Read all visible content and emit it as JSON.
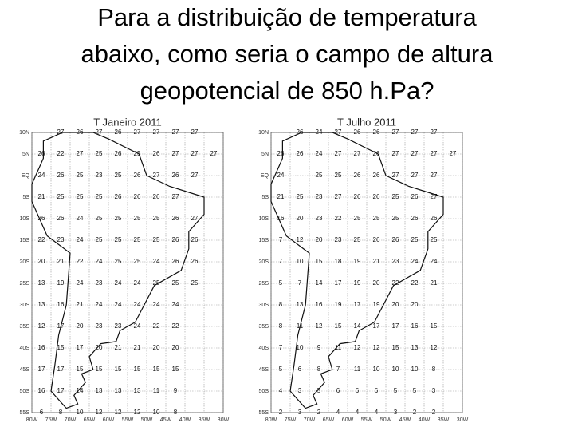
{
  "title_lines": [
    "Para a distribuição de temperatura",
    "abaixo, como seria o campo de altura",
    "geopotencial de 850 h.Pa?"
  ],
  "maps": [
    {
      "title": "T Janeiro 2011",
      "lat_labels": [
        "10N",
        "5N",
        "EQ",
        "5S",
        "10S",
        "15S",
        "20S",
        "25S",
        "30S",
        "35S",
        "40S",
        "45S",
        "50S",
        "55S"
      ],
      "lon_labels": [
        "80W",
        "75W",
        "70W",
        "65W",
        "60W",
        "55W",
        "50W",
        "45W",
        "40W",
        "35W",
        "30W"
      ],
      "values": [
        [
          null,
          27,
          26,
          27,
          26,
          27,
          27,
          27,
          27,
          null
        ],
        [
          26,
          22,
          27,
          25,
          26,
          25,
          26,
          27,
          27,
          27
        ],
        [
          24,
          26,
          25,
          23,
          25,
          26,
          27,
          26,
          27,
          null
        ],
        [
          21,
          25,
          25,
          25,
          26,
          26,
          26,
          27,
          null,
          null
        ],
        [
          26,
          26,
          24,
          25,
          25,
          25,
          25,
          26,
          27,
          null
        ],
        [
          22,
          23,
          24,
          25,
          25,
          25,
          25,
          26,
          26,
          null
        ],
        [
          20,
          21,
          22,
          24,
          25,
          25,
          24,
          26,
          26,
          null
        ],
        [
          13,
          19,
          24,
          23,
          24,
          24,
          25,
          25,
          25,
          null
        ],
        [
          13,
          16,
          21,
          24,
          24,
          24,
          24,
          24,
          null,
          null
        ],
        [
          12,
          17,
          20,
          23,
          23,
          24,
          22,
          22,
          null,
          null
        ],
        [
          16,
          15,
          17,
          20,
          21,
          21,
          20,
          20,
          null,
          null
        ],
        [
          17,
          17,
          15,
          15,
          15,
          15,
          15,
          15,
          null,
          null
        ],
        [
          16,
          17,
          14,
          13,
          13,
          13,
          11,
          9,
          null,
          null
        ],
        [
          6,
          8,
          10,
          12,
          12,
          12,
          10,
          8,
          null,
          null
        ]
      ]
    },
    {
      "title": "T Julho 2011",
      "lat_labels": [
        "10N",
        "5N",
        "EQ",
        "5S",
        "10S",
        "15S",
        "20S",
        "25S",
        "30S",
        "35S",
        "40S",
        "45S",
        "50S",
        "55S"
      ],
      "lon_labels": [
        "80W",
        "75W",
        "70W",
        "65W",
        "60W",
        "55W",
        "50W",
        "45W",
        "40W",
        "35W",
        "30W"
      ],
      "values": [
        [
          null,
          26,
          24,
          27,
          26,
          26,
          27,
          27,
          27,
          null
        ],
        [
          26,
          26,
          24,
          27,
          27,
          26,
          27,
          27,
          27,
          27
        ],
        [
          24,
          null,
          25,
          25,
          26,
          26,
          27,
          27,
          27,
          null
        ],
        [
          21,
          25,
          23,
          27,
          26,
          26,
          25,
          26,
          27,
          null
        ],
        [
          16,
          20,
          23,
          22,
          25,
          25,
          25,
          26,
          26,
          null
        ],
        [
          7,
          12,
          20,
          23,
          25,
          26,
          26,
          25,
          25,
          null
        ],
        [
          7,
          10,
          15,
          18,
          19,
          21,
          23,
          24,
          24,
          null
        ],
        [
          5,
          7,
          14,
          17,
          19,
          20,
          22,
          22,
          21,
          null
        ],
        [
          8,
          13,
          16,
          19,
          17,
          19,
          20,
          20,
          null,
          null
        ],
        [
          8,
          11,
          12,
          15,
          14,
          17,
          17,
          16,
          15,
          null
        ],
        [
          7,
          10,
          9,
          11,
          12,
          12,
          15,
          13,
          12,
          null
        ],
        [
          5,
          6,
          8,
          7,
          11,
          10,
          10,
          10,
          8,
          null
        ],
        [
          4,
          3,
          5,
          6,
          6,
          6,
          5,
          5,
          3,
          null
        ],
        [
          2,
          3,
          2,
          4,
          4,
          4,
          3,
          2,
          2,
          null
        ]
      ]
    }
  ]
}
